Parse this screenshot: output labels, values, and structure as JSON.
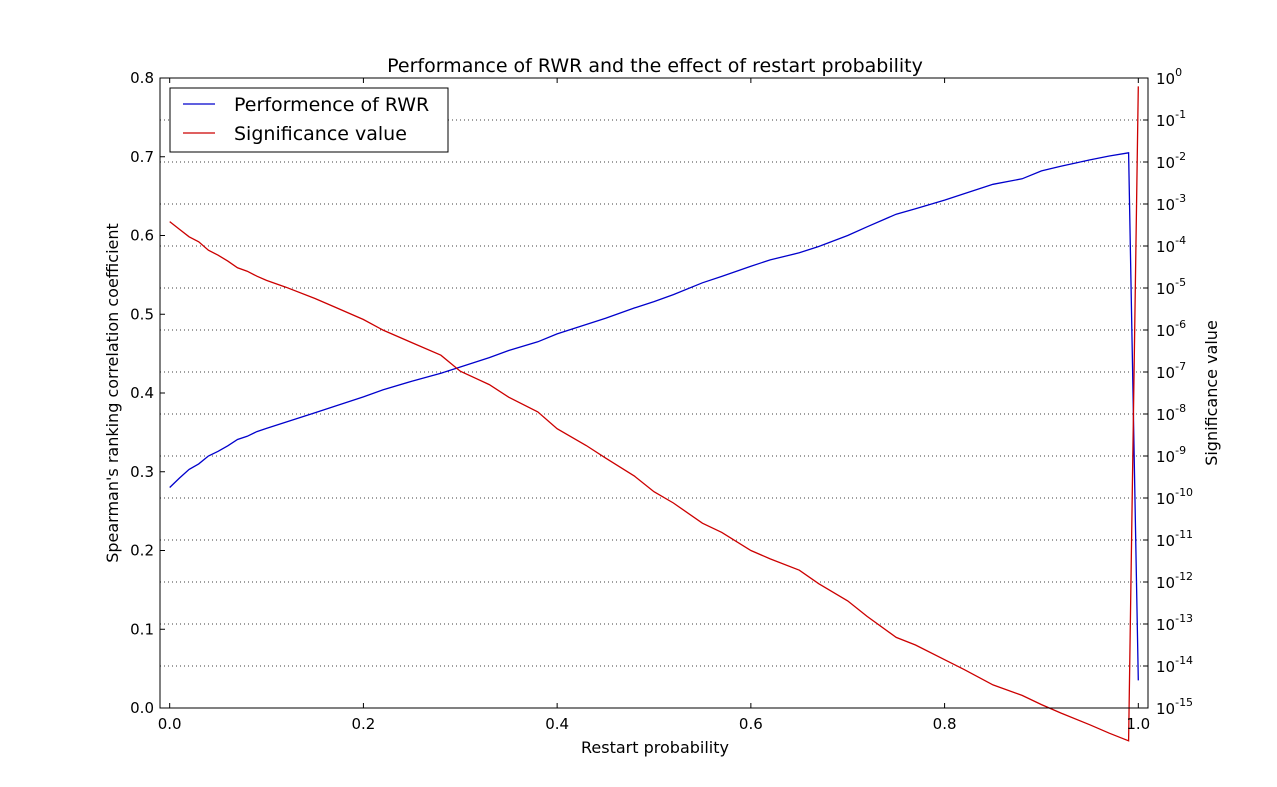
{
  "chart_data": {
    "type": "line",
    "title": "Performance of RWR and the effect of restart probability",
    "xlabel": "Restart probability",
    "ylabel_left": "Spearman's ranking correlation coefficient",
    "ylabel_right": "Significance value",
    "xlim": [
      -0.01,
      1.01
    ],
    "ylim_left": [
      0.0,
      0.8
    ],
    "ylim_right_log10": [
      -15,
      0
    ],
    "right_axis_scale": "log",
    "grid": "horizontal dotted at right-axis ticks",
    "legend_position": "top-left",
    "x_ticks": [
      "0.0",
      "0.2",
      "0.4",
      "0.6",
      "0.8",
      "1.0"
    ],
    "y_left_ticks": [
      "0.0",
      "0.1",
      "0.2",
      "0.3",
      "0.4",
      "0.5",
      "0.6",
      "0.7",
      "0.8"
    ],
    "y_right_ticks": [
      {
        "base": "10",
        "exp": "-15"
      },
      {
        "base": "10",
        "exp": "-14"
      },
      {
        "base": "10",
        "exp": "-13"
      },
      {
        "base": "10",
        "exp": "-12"
      },
      {
        "base": "10",
        "exp": "-11"
      },
      {
        "base": "10",
        "exp": "-10"
      },
      {
        "base": "10",
        "exp": "-9"
      },
      {
        "base": "10",
        "exp": "-8"
      },
      {
        "base": "10",
        "exp": "-7"
      },
      {
        "base": "10",
        "exp": "-6"
      },
      {
        "base": "10",
        "exp": "-5"
      },
      {
        "base": "10",
        "exp": "-4"
      },
      {
        "base": "10",
        "exp": "-3"
      },
      {
        "base": "10",
        "exp": "-2"
      },
      {
        "base": "10",
        "exp": "-1"
      },
      {
        "base": "10",
        "exp": "0"
      }
    ],
    "series": [
      {
        "name": "Performence of RWR",
        "color": "#0000cc",
        "axis": "left",
        "x": [
          0.0,
          0.01,
          0.02,
          0.03,
          0.04,
          0.05,
          0.06,
          0.07,
          0.08,
          0.09,
          0.1,
          0.12,
          0.15,
          0.17,
          0.2,
          0.22,
          0.25,
          0.28,
          0.3,
          0.33,
          0.35,
          0.38,
          0.4,
          0.43,
          0.45,
          0.48,
          0.5,
          0.52,
          0.55,
          0.57,
          0.6,
          0.62,
          0.65,
          0.67,
          0.7,
          0.72,
          0.75,
          0.77,
          0.8,
          0.82,
          0.85,
          0.88,
          0.9,
          0.92,
          0.95,
          0.97,
          0.99,
          1.0
        ],
        "y": [
          0.28,
          0.292,
          0.303,
          0.31,
          0.32,
          0.326,
          0.333,
          0.341,
          0.345,
          0.351,
          0.355,
          0.363,
          0.375,
          0.383,
          0.395,
          0.404,
          0.415,
          0.425,
          0.433,
          0.445,
          0.454,
          0.465,
          0.475,
          0.487,
          0.495,
          0.508,
          0.516,
          0.525,
          0.54,
          0.548,
          0.561,
          0.569,
          0.578,
          0.586,
          0.6,
          0.611,
          0.627,
          0.634,
          0.645,
          0.653,
          0.665,
          0.672,
          0.682,
          0.688,
          0.696,
          0.701,
          0.705,
          0.035
        ]
      },
      {
        "name": "Significance value",
        "color": "#cc0000",
        "axis": "right",
        "x": [
          0.0,
          0.01,
          0.02,
          0.03,
          0.04,
          0.05,
          0.06,
          0.07,
          0.08,
          0.09,
          0.1,
          0.12,
          0.15,
          0.17,
          0.2,
          0.22,
          0.25,
          0.28,
          0.3,
          0.33,
          0.35,
          0.38,
          0.4,
          0.43,
          0.45,
          0.48,
          0.5,
          0.52,
          0.55,
          0.57,
          0.6,
          0.62,
          0.65,
          0.67,
          0.7,
          0.72,
          0.75,
          0.77,
          0.8,
          0.82,
          0.85,
          0.88,
          0.9,
          0.92,
          0.95,
          0.97,
          0.99,
          1.0
        ],
        "log10_y": [
          -3.42,
          -3.6,
          -3.78,
          -3.9,
          -4.1,
          -4.22,
          -4.36,
          -4.52,
          -4.6,
          -4.72,
          -4.82,
          -4.98,
          -5.25,
          -5.45,
          -5.75,
          -6.0,
          -6.3,
          -6.6,
          -6.98,
          -7.3,
          -7.6,
          -7.95,
          -8.35,
          -8.75,
          -9.05,
          -9.48,
          -9.85,
          -10.12,
          -10.6,
          -10.82,
          -11.25,
          -11.45,
          -11.72,
          -12.04,
          -12.45,
          -12.82,
          -13.32,
          -13.5,
          -13.85,
          -14.08,
          -14.45,
          -14.7,
          -14.92,
          -15.12,
          -15.4,
          -15.6,
          -15.78,
          -0.2
        ]
      }
    ]
  }
}
